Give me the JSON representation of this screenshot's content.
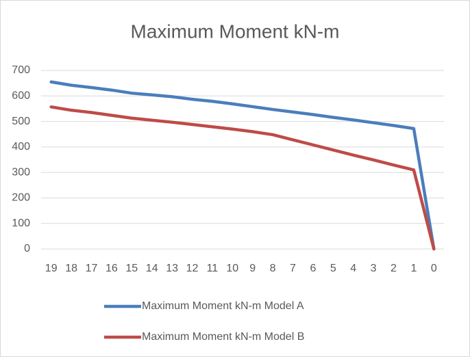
{
  "chart_data": {
    "type": "line",
    "title": "Maximum Moment kN-m",
    "categories": [
      "19",
      "18",
      "17",
      "16",
      "15",
      "14",
      "13",
      "12",
      "11",
      "10",
      "9",
      "8",
      "7",
      "6",
      "5",
      "4",
      "3",
      "2",
      "1",
      "0"
    ],
    "series": [
      {
        "name": "Maximum Moment kN-m Model A",
        "color": "#4a7ebb",
        "values": [
          655,
          642,
          633,
          623,
          611,
          604,
          597,
          587,
          579,
          569,
          558,
          547,
          537,
          527,
          516,
          506,
          495,
          484,
          472,
          0
        ]
      },
      {
        "name": "Maximum Moment kN-m Model B",
        "color": "#be4b48",
        "values": [
          557,
          544,
          535,
          524,
          513,
          505,
          497,
          488,
          479,
          470,
          460,
          448,
          428,
          408,
          388,
          368,
          349,
          329,
          310,
          0
        ]
      }
    ],
    "ylim": [
      0,
      700
    ],
    "yticks": [
      0,
      100,
      200,
      300,
      400,
      500,
      600,
      700
    ],
    "grid": true,
    "legend": "bottom"
  }
}
